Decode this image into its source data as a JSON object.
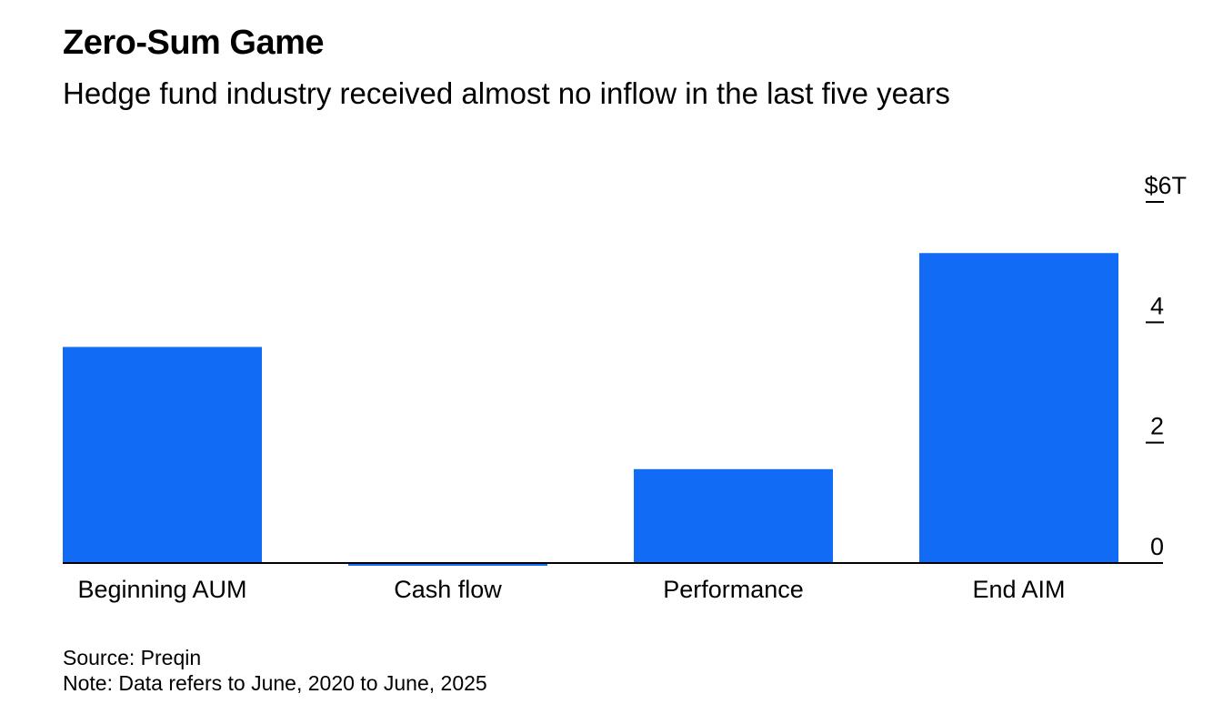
{
  "chart_data": {
    "type": "bar",
    "title": "Zero-Sum Game",
    "subtitle": "Hedge fund industry received almost no inflow in the last five years",
    "categories": [
      "Beginning AUM",
      "Cash flow",
      "Performance",
      "End AIM"
    ],
    "values": [
      3.59,
      -0.02,
      1.56,
      5.15
    ],
    "xlabel": "",
    "ylabel": "",
    "ylim": [
      0,
      6
    ],
    "yticks": [
      0,
      2,
      4,
      6
    ],
    "ytick_labels": [
      "0",
      "2",
      "4",
      "$6T"
    ],
    "y_axis_position": "right",
    "grid": false,
    "legend": "none",
    "bar_color": "#126bf4",
    "source": "Source: Preqin",
    "note": "Note: Data refers to June, 2020 to June, 2025"
  }
}
